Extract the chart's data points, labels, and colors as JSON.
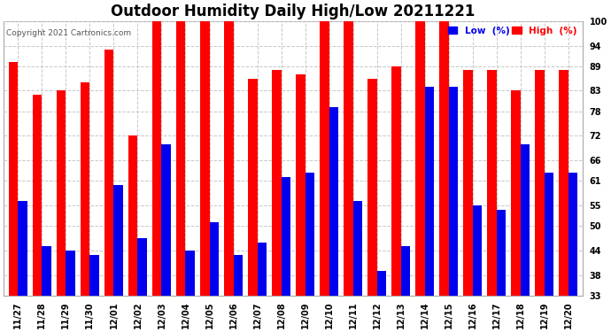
{
  "title": "Outdoor Humidity Daily High/Low 20211221",
  "copyright": "Copyright 2021 Cartronics.com",
  "legend_low": "Low  (%)",
  "legend_high": "High  (%)",
  "categories": [
    "11/27",
    "11/28",
    "11/29",
    "11/30",
    "12/01",
    "12/02",
    "12/03",
    "12/04",
    "12/05",
    "12/06",
    "12/07",
    "12/08",
    "12/09",
    "12/10",
    "12/11",
    "12/12",
    "12/13",
    "12/14",
    "12/15",
    "12/16",
    "12/17",
    "12/18",
    "12/19",
    "12/20"
  ],
  "high_values": [
    90,
    82,
    83,
    85,
    93,
    72,
    100,
    100,
    100,
    100,
    86,
    88,
    87,
    100,
    100,
    86,
    89,
    100,
    100,
    88,
    88,
    83,
    88,
    88
  ],
  "low_values": [
    56,
    45,
    44,
    43,
    60,
    47,
    70,
    44,
    51,
    43,
    46,
    62,
    63,
    79,
    56,
    39,
    45,
    84,
    84,
    55,
    54,
    70,
    63,
    63
  ],
  "ylim_min": 33,
  "ylim_max": 100,
  "yticks": [
    33,
    38,
    44,
    50,
    55,
    61,
    66,
    72,
    78,
    83,
    89,
    94,
    100
  ],
  "bar_width": 0.38,
  "high_color": "#ff0000",
  "low_color": "#0000ee",
  "bg_color": "#ffffff",
  "grid_color": "#c8c8c8",
  "title_fontsize": 12,
  "tick_fontsize": 7,
  "copyright_fontsize": 6.5
}
